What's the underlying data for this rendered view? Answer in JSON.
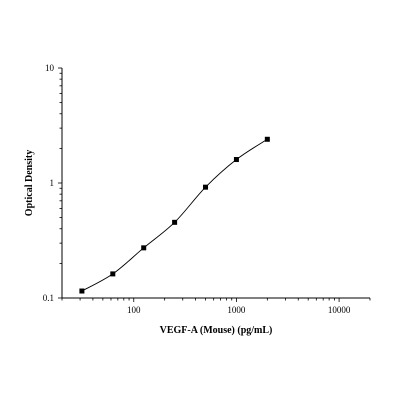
{
  "chart_data": {
    "type": "scatter",
    "xlabel": "VEGF-A (Mouse) (pg/mL)",
    "ylabel": "Optical Density",
    "xscale": "log",
    "yscale": "log",
    "xlim": [
      20,
      20000
    ],
    "ylim": [
      0.1,
      10
    ],
    "x_ticks": [
      "100",
      "1000",
      "10000"
    ],
    "y_ticks": [
      "0.1",
      "1",
      "10"
    ],
    "grid": false,
    "series": [
      {
        "points": [
          {
            "x": 31.25,
            "y": 0.115
          },
          {
            "x": 62.5,
            "y": 0.162
          },
          {
            "x": 125,
            "y": 0.273
          },
          {
            "x": 250,
            "y": 0.455
          },
          {
            "x": 500,
            "y": 0.92
          },
          {
            "x": 1000,
            "y": 1.6
          },
          {
            "x": 2000,
            "y": 2.4
          }
        ],
        "marker": "square",
        "fit_curve": true
      }
    ]
  }
}
